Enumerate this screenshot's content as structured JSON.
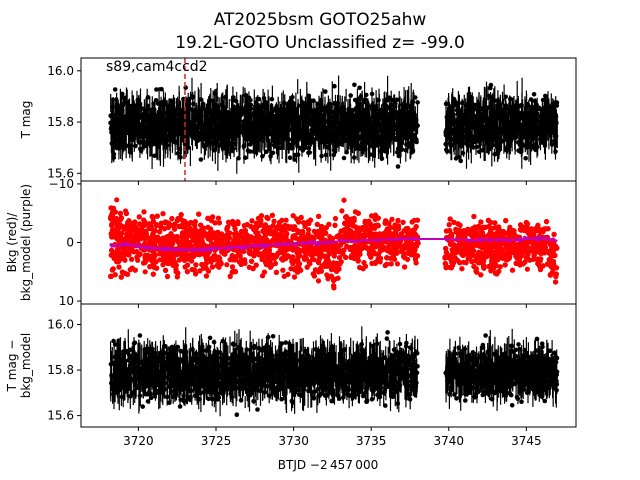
{
  "title_line1": "AT2025bsm  GOTO25ahw",
  "title_line2": "19.2L-GOTO Unclassified z= -99.0",
  "annotation": "s89,cam4ccd2",
  "xlabel": "BTJD −2 457 000",
  "colors": {
    "flux": "#000000",
    "bkg": "#ff0000",
    "bkg_model": "#bf00bf",
    "marker": "#d62728"
  },
  "chart_data": [
    {
      "type": "scatter",
      "panel": "top",
      "ylabel": "T mag",
      "y_inverted": true,
      "xlim": [
        3716.3,
        3748.2
      ],
      "ylim": [
        16.05,
        15.57
      ],
      "xticks": [
        3720,
        3725,
        3730,
        3735,
        3740,
        3745
      ],
      "yticks": [
        15.6,
        15.8,
        16.0
      ],
      "ytick_labels": [
        "15.6",
        "15.8",
        "16.0"
      ],
      "segments": [
        {
          "x_start": 3718.2,
          "x_end": 3738.0,
          "y_center": 15.79,
          "y_spread": 0.12
        },
        {
          "x_start": 3739.8,
          "x_end": 3747.0,
          "y_center": 15.79,
          "y_spread": 0.12
        }
      ],
      "marker_x": 3723.0
    },
    {
      "type": "scatter",
      "panel": "middle",
      "ylabel": "Bkg (red)/ bkg_model (purple)",
      "xlim": [
        3716.3,
        3748.2
      ],
      "ylim": [
        -10.5,
        10.5
      ],
      "yticks": [
        -10,
        0,
        10
      ],
      "ytick_labels": [
        "−10",
        "0",
        "10"
      ],
      "bkg_model": {
        "x": [
          3718.2,
          3719,
          3720,
          3721,
          3722,
          3723,
          3724,
          3725,
          3726,
          3727,
          3728,
          3729,
          3730,
          3731,
          3732,
          3733,
          3734,
          3735,
          3736,
          3737,
          3738,
          3739.8,
          3741,
          3742,
          3743,
          3744,
          3745,
          3746,
          3747
        ],
        "y": [
          0.7,
          0.4,
          0.6,
          0.9,
          1.1,
          1.3,
          1.2,
          1.0,
          0.9,
          0.7,
          0.5,
          0.3,
          0.2,
          0.1,
          0.0,
          -0.2,
          -0.3,
          -0.4,
          -0.5,
          -0.6,
          -0.6,
          -0.6,
          -0.5,
          -0.4,
          -0.5,
          -0.4,
          -0.6,
          -0.7,
          -0.3
        ]
      },
      "bkg_envelope": {
        "x": [
          3718.2,
          3719,
          3720,
          3721,
          3722,
          3723,
          3724,
          3725,
          3726,
          3727,
          3728,
          3729,
          3730,
          3731,
          3732,
          3732.5,
          3732.9,
          3733.2,
          3734,
          3735,
          3736,
          3737,
          3738,
          3739.8,
          3741,
          3742,
          3743,
          3744,
          3745,
          3746,
          3746.5,
          3747
        ],
        "low": [
          -9.0,
          -6.0,
          -5.5,
          -5.0,
          -5.0,
          -5.0,
          -5.5,
          -5.0,
          -5.0,
          -5.5,
          -5.5,
          -5.0,
          -5.5,
          -5.0,
          -5.0,
          -4.5,
          -4.0,
          -7.5,
          -6.0,
          -5.0,
          -4.5,
          -4.0,
          -4.0,
          -4.0,
          -4.5,
          -4.5,
          -4.0,
          -4.0,
          -4.5,
          -4.0,
          -3.5,
          -2.0
        ],
        "high": [
          8.0,
          6.0,
          5.5,
          6.0,
          6.0,
          6.0,
          6.0,
          6.0,
          6.0,
          5.5,
          6.0,
          6.0,
          6.5,
          6.0,
          7.0,
          10.5,
          8.0,
          3.5,
          5.0,
          4.0,
          4.0,
          4.5,
          4.0,
          6.0,
          5.0,
          6.0,
          5.5,
          5.0,
          5.0,
          5.5,
          7.0,
          9.0
        ]
      }
    },
    {
      "type": "scatter",
      "panel": "bottom",
      "ylabel": "T mag − bkg_model",
      "y_inverted": true,
      "xlim": [
        3716.3,
        3748.2
      ],
      "ylim": [
        16.09,
        15.55
      ],
      "yticks": [
        15.6,
        15.8,
        16.0
      ],
      "ytick_labels": [
        "15.6",
        "15.8",
        "16.0"
      ],
      "segments": [
        {
          "x_start": 3718.2,
          "x_end": 3738.0,
          "y_center": 15.79,
          "y_spread": 0.13
        },
        {
          "x_start": 3739.8,
          "x_end": 3747.0,
          "y_center": 15.79,
          "y_spread": 0.12
        }
      ]
    }
  ]
}
